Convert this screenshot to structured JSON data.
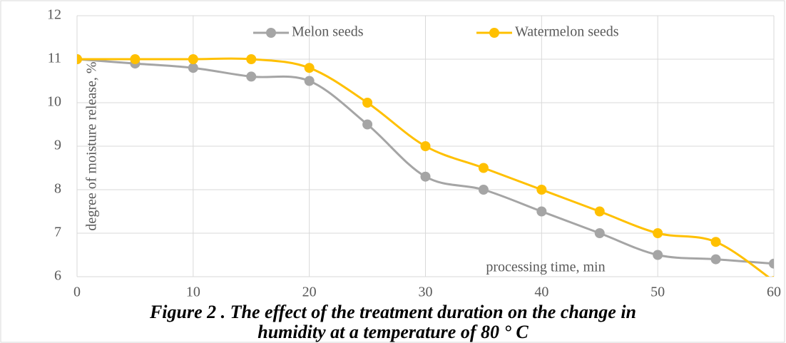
{
  "chart_data": {
    "type": "line",
    "caption": [
      "Figure 2 . The effect of the treatment duration on the change in",
      "humidity at a temperature of 80 ° C"
    ],
    "y_label": "degree of moisture release, %",
    "x_label": "processing time, min",
    "x": [
      0,
      5,
      10,
      15,
      20,
      25,
      30,
      35,
      40,
      45,
      50,
      55,
      60
    ],
    "series": [
      {
        "name": "Melon seeds",
        "color": "#a5a5a5",
        "values": [
          11,
          10.9,
          10.8,
          10.6,
          10.5,
          9.5,
          8.3,
          8.0,
          7.5,
          7.0,
          6.5,
          6.4,
          6.3
        ]
      },
      {
        "name": "Watermelon seeds",
        "color": "#ffc000",
        "values": [
          11,
          11,
          11,
          11,
          10.8,
          10.0,
          9.0,
          8.5,
          8.0,
          7.5,
          7.0,
          6.8,
          5.9
        ]
      }
    ],
    "xlim": [
      0,
      60
    ],
    "xticks": [
      0,
      10,
      20,
      30,
      40,
      50,
      60
    ],
    "ylim": [
      6,
      12
    ],
    "yticks": [
      6,
      7,
      8,
      9,
      10,
      11,
      12
    ],
    "grid": true,
    "legend": "top",
    "smooth": true
  }
}
